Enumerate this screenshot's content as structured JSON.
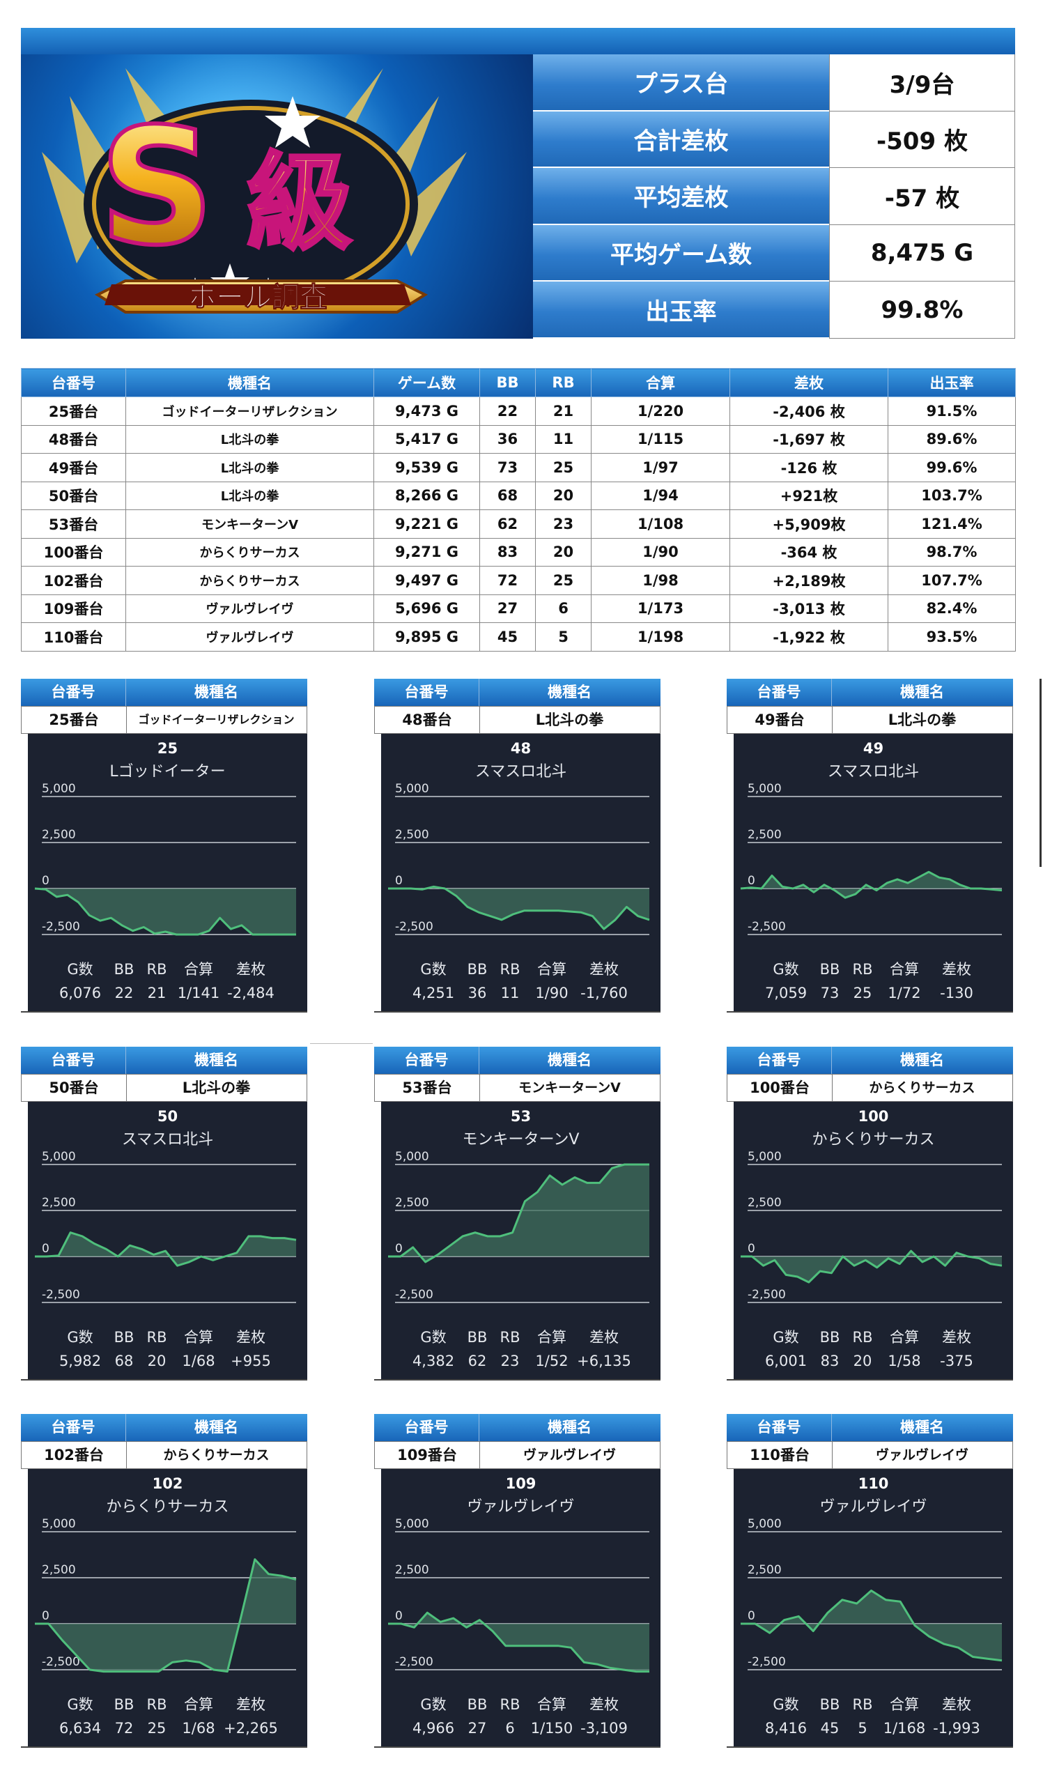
{
  "banner": {
    "big_letter": "S",
    "kanji": "級",
    "ribbon": "ホール調査"
  },
  "summary": [
    {
      "label": "プラス台",
      "value": "3/9台"
    },
    {
      "label": "合計差枚",
      "value": "-509 枚"
    },
    {
      "label": "平均差枚",
      "value": "-57 枚"
    },
    {
      "label": "平均ゲーム数",
      "value": "8,475 G"
    },
    {
      "label": "出玉率",
      "value": "99.8%"
    }
  ],
  "table": {
    "headers": [
      "台番号",
      "機種名",
      "ゲーム数",
      "BB",
      "RB",
      "合算",
      "差枚",
      "出玉率"
    ],
    "rows": [
      [
        "25番台",
        "ゴッドイーターリザレクション",
        "9,473 G",
        "22",
        "21",
        "1/220",
        "-2,406 枚",
        "91.5%"
      ],
      [
        "48番台",
        "L北斗の拳",
        "5,417 G",
        "36",
        "11",
        "1/115",
        "-1,697 枚",
        "89.6%"
      ],
      [
        "49番台",
        "L北斗の拳",
        "9,539 G",
        "73",
        "25",
        "1/97",
        "-126 枚",
        "99.6%"
      ],
      [
        "50番台",
        "L北斗の拳",
        "8,266 G",
        "68",
        "20",
        "1/94",
        "+921枚",
        "103.7%"
      ],
      [
        "53番台",
        "モンキーターンV",
        "9,221 G",
        "62",
        "23",
        "1/108",
        "+5,909枚",
        "121.4%"
      ],
      [
        "100番台",
        "からくりサーカス",
        "9,271 G",
        "83",
        "20",
        "1/90",
        "-364 枚",
        "98.7%"
      ],
      [
        "102番台",
        "からくりサーカス",
        "9,497 G",
        "72",
        "25",
        "1/98",
        "+2,189枚",
        "107.7%"
      ],
      [
        "109番台",
        "ヴァルヴレイヴ",
        "5,696 G",
        "27",
        "6",
        "1/173",
        "-3,013 枚",
        "82.4%"
      ],
      [
        "110番台",
        "ヴァルヴレイヴ",
        "9,895 G",
        "45",
        "5",
        "1/198",
        "-1,922 枚",
        "93.5%"
      ]
    ]
  },
  "card_header": {
    "number_label": "台番号",
    "model_label": "機種名"
  },
  "stat_labels": [
    "G数",
    "BB",
    "RB",
    "合算",
    "差枚"
  ],
  "chart_data": [
    {
      "type": "area",
      "title": "25",
      "subtitle": "Lゴッドイーター",
      "ylim": [
        -2500,
        5000
      ],
      "yticks": [
        "5,000",
        "2,500",
        "0",
        "-2,500"
      ],
      "y": [
        0,
        -50,
        -450,
        -350,
        -750,
        -1450,
        -1750,
        -1600,
        -2000,
        -2300,
        -2100,
        -2450,
        -2350,
        -2500,
        -2500,
        -2500,
        -2300,
        -1600,
        -2200,
        -2000,
        -2500,
        -2500,
        -2500,
        -2500,
        -2500
      ],
      "table_no": "25番台",
      "model": "ゴッドイーターリザレクション",
      "stats": [
        "6,076",
        "22",
        "21",
        "1/141",
        "-2,484"
      ]
    },
    {
      "type": "area",
      "title": "48",
      "subtitle": "スマスロ北斗",
      "ylim": [
        -2500,
        5000
      ],
      "yticks": [
        "5,000",
        "2,500",
        "0",
        "-2,500"
      ],
      "y": [
        0,
        0,
        0,
        -50,
        100,
        0,
        -400,
        -1000,
        -1300,
        -1500,
        -1700,
        -1400,
        -1200,
        -1200,
        -1200,
        -1200,
        -1250,
        -1300,
        -1500,
        -2200,
        -1700,
        -1000,
        -1500,
        -1700
      ],
      "table_no": "48番台",
      "model": "L北斗の拳",
      "stats": [
        "4,251",
        "36",
        "11",
        "1/90",
        "-1,760"
      ]
    },
    {
      "type": "area",
      "title": "49",
      "subtitle": "スマスロ北斗",
      "ylim": [
        -2500,
        5000
      ],
      "yticks": [
        "5,000",
        "2,500",
        "0",
        "-2,500"
      ],
      "y": [
        0,
        50,
        0,
        700,
        100,
        0,
        200,
        -200,
        200,
        -100,
        -500,
        -300,
        200,
        -100,
        300,
        500,
        300,
        600,
        900,
        600,
        500,
        200,
        0,
        0,
        -50,
        -100
      ],
      "table_no": "49番台",
      "model": "L北斗の拳",
      "stats": [
        "7,059",
        "73",
        "25",
        "1/72",
        "-130"
      ]
    },
    {
      "type": "area",
      "title": "50",
      "subtitle": "スマスロ北斗",
      "ylim": [
        -2500,
        5000
      ],
      "yticks": [
        "5,000",
        "2,500",
        "0",
        "-2,500"
      ],
      "y": [
        0,
        0,
        50,
        1300,
        1100,
        700,
        400,
        0,
        600,
        400,
        100,
        300,
        -500,
        -300,
        0,
        -200,
        0,
        200,
        1100,
        1100,
        1000,
        1000,
        900
      ],
      "table_no": "50番台",
      "model": "L北斗の拳",
      "stats": [
        "5,982",
        "68",
        "20",
        "1/68",
        "+955"
      ]
    },
    {
      "type": "area",
      "title": "53",
      "subtitle": "モンキーターンV",
      "ylim": [
        -2500,
        5000
      ],
      "yticks": [
        "5,000",
        "2,500",
        "0",
        "-2,500"
      ],
      "y": [
        0,
        0,
        500,
        -300,
        100,
        600,
        1100,
        1300,
        1100,
        1100,
        1300,
        3000,
        3500,
        4400,
        3900,
        4300,
        4000,
        4000,
        4800,
        5300,
        5300,
        5300
      ],
      "table_no": "53番台",
      "model": "モンキーターンV",
      "stats": [
        "4,382",
        "62",
        "23",
        "1/52",
        "+6,135"
      ]
    },
    {
      "type": "area",
      "title": "100",
      "subtitle": "からくりサーカス",
      "ylim": [
        -2500,
        5000
      ],
      "yticks": [
        "5,000",
        "2,500",
        "0",
        "-2,500"
      ],
      "y": [
        0,
        0,
        -500,
        -200,
        -1000,
        -1100,
        -1400,
        -800,
        -900,
        0,
        -500,
        -200,
        -600,
        -100,
        -400,
        300,
        -300,
        0,
        -500,
        200,
        0,
        -100,
        -400,
        -500
      ],
      "table_no": "100番台",
      "model": "からくりサーカス",
      "stats": [
        "6,001",
        "83",
        "20",
        "1/58",
        "-375"
      ]
    },
    {
      "type": "area",
      "title": "102",
      "subtitle": "からくりサーカス",
      "ylim": [
        -2500,
        5000
      ],
      "yticks": [
        "5,000",
        "2,500",
        "0",
        "-2,500"
      ],
      "y": [
        0,
        0,
        -900,
        -1700,
        -2500,
        -2600,
        -2600,
        -2600,
        -2600,
        -2600,
        -2100,
        -2000,
        -2100,
        -2500,
        -2600,
        400,
        3500,
        2700,
        2600,
        2400
      ],
      "table_no": "102番台",
      "model": "からくりサーカス",
      "stats": [
        "6,634",
        "72",
        "25",
        "1/68",
        "+2,265"
      ]
    },
    {
      "type": "area",
      "title": "109",
      "subtitle": "ヴァルヴレイヴ",
      "ylim": [
        -2500,
        5000
      ],
      "yticks": [
        "5,000",
        "2,500",
        "0",
        "-2,500"
      ],
      "y": [
        0,
        0,
        -200,
        600,
        100,
        300,
        -200,
        200,
        -400,
        -1200,
        -1200,
        -1200,
        -1200,
        -1200,
        -1300,
        -2100,
        -2200,
        -2400,
        -2500,
        -2600,
        -2600
      ],
      "table_no": "109番台",
      "model": "ヴァルヴレイヴ",
      "stats": [
        "4,966",
        "27",
        "6",
        "1/150",
        "-3,109"
      ]
    },
    {
      "type": "area",
      "title": "110",
      "subtitle": "ヴァルヴレイヴ",
      "ylim": [
        -2500,
        5000
      ],
      "yticks": [
        "5,000",
        "2,500",
        "0",
        "-2,500"
      ],
      "y": [
        0,
        0,
        -500,
        200,
        400,
        -400,
        600,
        1300,
        1100,
        1800,
        1300,
        1200,
        -100,
        -700,
        -1100,
        -1300,
        -1800,
        -1900,
        -2000
      ],
      "table_no": "110番台",
      "model": "ヴァルヴレイヴ",
      "stats": [
        "8,416",
        "45",
        "5",
        "1/168",
        "-1,993"
      ]
    }
  ]
}
